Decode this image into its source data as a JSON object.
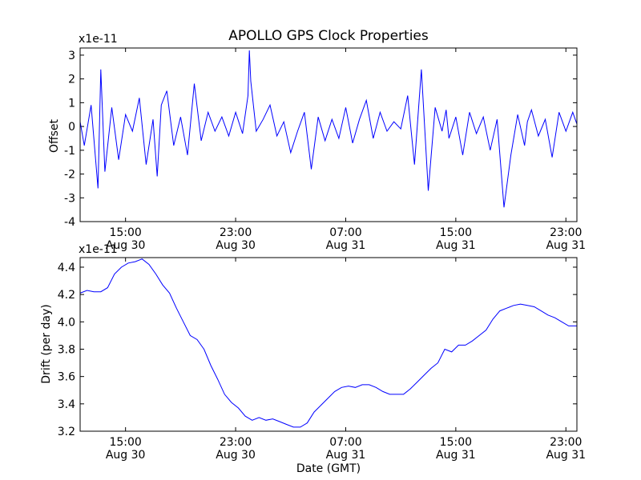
{
  "chart_data": [
    {
      "type": "line",
      "title": "APOLLO GPS Clock Properties",
      "ylabel": "Offset",
      "y_multiplier": "x1e-11",
      "ylim": [
        -4,
        3.3
      ],
      "yticks": [
        -4,
        -3,
        -2,
        -1,
        0,
        1,
        2,
        3
      ],
      "xlim_hours": [
        11.7,
        47.8
      ],
      "xticks": [
        {
          "hour": 15,
          "time": "15:00",
          "date": "Aug 30"
        },
        {
          "hour": 23,
          "time": "23:00",
          "date": "Aug 30"
        },
        {
          "hour": 31,
          "time": "07:00",
          "date": "Aug 31"
        },
        {
          "hour": 39,
          "time": "15:00",
          "date": "Aug 31"
        },
        {
          "hour": 47,
          "time": "23:00",
          "date": "Aug 31"
        }
      ],
      "line_color": "#0000ff",
      "series": [
        {
          "x_hours": [
            11.7,
            12.0,
            12.5,
            13.0,
            13.2,
            13.5,
            14.0,
            14.5,
            15.0,
            15.5,
            16.0,
            16.5,
            17.0,
            17.3,
            17.6,
            18.0,
            18.5,
            19.0,
            19.5,
            20.0,
            20.5,
            21.0,
            21.5,
            22.0,
            22.5,
            23.0,
            23.5,
            23.9,
            24.0,
            24.1,
            24.5,
            25.0,
            25.5,
            26.0,
            26.5,
            27.0,
            27.5,
            28.0,
            28.5,
            29.0,
            29.5,
            30.0,
            30.5,
            31.0,
            31.5,
            32.0,
            32.5,
            33.0,
            33.5,
            34.0,
            34.5,
            35.0,
            35.5,
            36.0,
            36.5,
            37.0,
            37.5,
            38.0,
            38.3,
            38.5,
            39.0,
            39.5,
            40.0,
            40.5,
            41.0,
            41.5,
            42.0,
            42.5,
            43.0,
            43.5,
            44.0,
            44.2,
            44.5,
            45.0,
            45.5,
            46.0,
            46.5,
            47.0,
            47.5,
            47.8
          ],
          "y": [
            0.2,
            -0.8,
            0.9,
            -2.6,
            2.4,
            -1.9,
            0.8,
            -1.4,
            0.5,
            -0.2,
            1.2,
            -1.6,
            0.3,
            -2.1,
            0.9,
            1.5,
            -0.8,
            0.4,
            -1.2,
            1.8,
            -0.6,
            0.6,
            -0.2,
            0.4,
            -0.4,
            0.6,
            -0.3,
            1.3,
            3.2,
            1.9,
            -0.2,
            0.3,
            0.9,
            -0.4,
            0.2,
            -1.1,
            -0.2,
            0.6,
            -1.8,
            0.4,
            -0.6,
            0.3,
            -0.5,
            0.8,
            -0.7,
            0.3,
            1.1,
            -0.5,
            0.6,
            -0.2,
            0.2,
            -0.1,
            1.3,
            -1.6,
            2.4,
            -2.7,
            0.8,
            -0.2,
            0.7,
            -0.5,
            0.4,
            -1.2,
            0.6,
            -0.3,
            0.4,
            -1.0,
            0.3,
            -3.4,
            -1.2,
            0.5,
            -0.8,
            0.2,
            0.7,
            -0.4,
            0.3,
            -1.3,
            0.6,
            -0.2,
            0.6,
            0.1
          ]
        }
      ]
    },
    {
      "type": "line",
      "ylabel": "Drift (per day)",
      "xlabel": "Date (GMT)",
      "y_multiplier": "x1e-11",
      "ylim": [
        3.2,
        4.47
      ],
      "yticks": [
        3.2,
        3.4,
        3.6,
        3.8,
        4.0,
        4.2,
        4.4
      ],
      "ytick_labels": [
        "3.2",
        "3.4",
        "3.6",
        "3.8",
        "4.0",
        "4.2",
        "4.4"
      ],
      "xlim_hours": [
        11.7,
        47.8
      ],
      "xticks": [
        {
          "hour": 15,
          "time": "15:00",
          "date": "Aug 30"
        },
        {
          "hour": 23,
          "time": "23:00",
          "date": "Aug 30"
        },
        {
          "hour": 31,
          "time": "07:00",
          "date": "Aug 31"
        },
        {
          "hour": 39,
          "time": "15:00",
          "date": "Aug 31"
        },
        {
          "hour": 47,
          "time": "23:00",
          "date": "Aug 31"
        }
      ],
      "line_color": "#0000ff",
      "series": [
        {
          "x_hours": [
            11.7,
            12.2,
            12.7,
            13.2,
            13.7,
            14.2,
            14.7,
            15.2,
            15.7,
            16.2,
            16.7,
            17.2,
            17.7,
            18.2,
            18.7,
            19.2,
            19.7,
            20.2,
            20.7,
            21.2,
            21.7,
            22.2,
            22.7,
            23.2,
            23.7,
            24.2,
            24.7,
            25.2,
            25.7,
            26.2,
            26.7,
            27.2,
            27.7,
            28.2,
            28.7,
            29.2,
            29.7,
            30.2,
            30.7,
            31.2,
            31.7,
            32.2,
            32.7,
            33.2,
            33.7,
            34.2,
            34.7,
            35.2,
            35.7,
            36.2,
            36.7,
            37.2,
            37.7,
            38.2,
            38.7,
            39.2,
            39.7,
            40.2,
            40.7,
            41.2,
            41.7,
            42.2,
            42.7,
            43.2,
            43.7,
            44.2,
            44.7,
            45.2,
            45.7,
            46.2,
            46.7,
            47.2,
            47.8
          ],
          "y": [
            4.21,
            4.23,
            4.22,
            4.22,
            4.25,
            4.35,
            4.4,
            4.43,
            4.44,
            4.46,
            4.42,
            4.35,
            4.27,
            4.21,
            4.1,
            4.0,
            3.9,
            3.87,
            3.8,
            3.68,
            3.58,
            3.47,
            3.41,
            3.37,
            3.31,
            3.28,
            3.3,
            3.28,
            3.29,
            3.27,
            3.25,
            3.23,
            3.23,
            3.26,
            3.34,
            3.39,
            3.44,
            3.49,
            3.52,
            3.53,
            3.52,
            3.54,
            3.54,
            3.52,
            3.49,
            3.47,
            3.47,
            3.47,
            3.51,
            3.56,
            3.61,
            3.66,
            3.7,
            3.8,
            3.78,
            3.83,
            3.83,
            3.86,
            3.9,
            3.94,
            4.02,
            4.08,
            4.1,
            4.12,
            4.13,
            4.12,
            4.11,
            4.08,
            4.05,
            4.03,
            4.0,
            3.97,
            3.97
          ]
        }
      ]
    }
  ]
}
